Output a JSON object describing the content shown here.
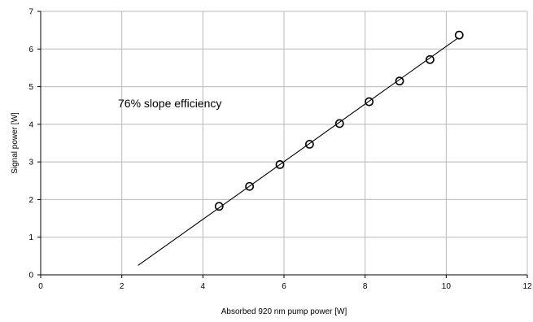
{
  "chart_data": {
    "type": "scatter",
    "xlabel": "Absorbed 920 nm pump power [W]",
    "ylabel": "Signal power [W]",
    "xlim": [
      0,
      12
    ],
    "ylim": [
      0,
      7
    ],
    "xticks": [
      0,
      2,
      4,
      6,
      8,
      10,
      12
    ],
    "yticks": [
      0,
      1,
      2,
      3,
      4,
      5,
      6,
      7
    ],
    "grid": true,
    "annotation": "76% slope efficiency",
    "series": [
      {
        "marker": "circle",
        "points": [
          {
            "x": 4.4,
            "y": 1.82
          },
          {
            "x": 5.15,
            "y": 2.35
          },
          {
            "x": 5.9,
            "y": 2.93
          },
          {
            "x": 6.63,
            "y": 3.47
          },
          {
            "x": 7.37,
            "y": 4.02
          },
          {
            "x": 8.1,
            "y": 4.6
          },
          {
            "x": 8.85,
            "y": 5.15
          },
          {
            "x": 9.6,
            "y": 5.72
          },
          {
            "x": 10.32,
            "y": 6.37
          }
        ]
      }
    ],
    "fit_line": {
      "x": [
        2.4,
        10.3
      ],
      "y": [
        0.25,
        6.3
      ]
    }
  }
}
